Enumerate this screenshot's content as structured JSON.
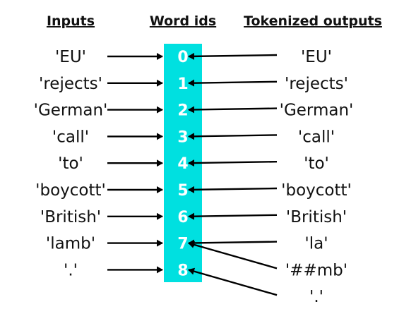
{
  "headers": {
    "inputs": "Inputs",
    "word_ids": "Word ids",
    "outputs": "Tokenized outputs"
  },
  "inputs": [
    "'EU'",
    "'rejects'",
    "'German'",
    "'call'",
    "'to'",
    "'boycott'",
    "'British'",
    "'lamb'",
    "'.'"
  ],
  "word_ids": [
    "0",
    "1",
    "2",
    "3",
    "4",
    "5",
    "6",
    "7",
    "8"
  ],
  "outputs": [
    "'EU'",
    "'rejects'",
    "'German'",
    "'call'",
    "'to'",
    "'boycott'",
    "'British'",
    "'la'",
    "'##mb'",
    "'.'"
  ],
  "output_word_ids": [
    0,
    1,
    2,
    3,
    4,
    5,
    6,
    7,
    7,
    8
  ],
  "colors": {
    "id_column": "#00e0e0",
    "text": "#111111",
    "id_text": "#ffffff",
    "arrow": "#000000"
  }
}
